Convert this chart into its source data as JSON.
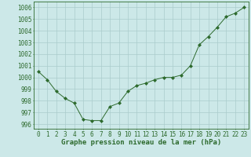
{
  "x": [
    0,
    1,
    2,
    3,
    4,
    5,
    6,
    7,
    8,
    9,
    10,
    11,
    12,
    13,
    14,
    15,
    16,
    17,
    18,
    19,
    20,
    21,
    22,
    23
  ],
  "y": [
    1000.5,
    999.8,
    998.8,
    998.2,
    997.8,
    996.4,
    996.3,
    996.3,
    997.5,
    997.8,
    998.8,
    999.3,
    999.5,
    999.8,
    1000.0,
    1000.0,
    1000.2,
    1001.0,
    1002.8,
    1003.5,
    1004.3,
    1005.2,
    1005.5,
    1006.0
  ],
  "line_color": "#2d6a2d",
  "marker": "D",
  "marker_size": 2.0,
  "bg_color": "#cce8e8",
  "grid_color": "#aacccc",
  "ylabel_ticks": [
    996,
    997,
    998,
    999,
    1000,
    1001,
    1002,
    1003,
    1004,
    1005,
    1006
  ],
  "xlabel_ticks": [
    0,
    1,
    2,
    3,
    4,
    5,
    6,
    7,
    8,
    9,
    10,
    11,
    12,
    13,
    14,
    15,
    16,
    17,
    18,
    19,
    20,
    21,
    22,
    23
  ],
  "ylim": [
    995.6,
    1006.5
  ],
  "xlim": [
    -0.5,
    23.5
  ],
  "xlabel": "Graphe pression niveau de la mer (hPa)",
  "xlabel_fontsize": 6.5,
  "tick_fontsize": 5.5,
  "tick_color": "#2d6a2d",
  "axis_color": "#2d6a2d",
  "linewidth": 0.7
}
